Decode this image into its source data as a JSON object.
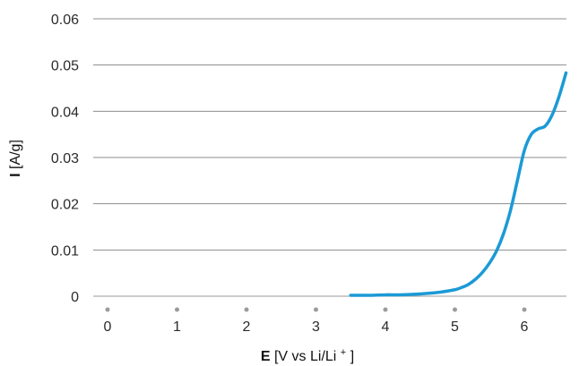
{
  "chart_data": {
    "type": "line",
    "title": "",
    "xlabel": {
      "bold_part": "E",
      "prefix": "[V vs Li/Li",
      "superscript": "+",
      "suffix": "]"
    },
    "ylabel": {
      "bold_part": "I",
      "rest": "[A/g]"
    },
    "xlim": [
      0,
      6.6
    ],
    "ylim": [
      0,
      0.06
    ],
    "x_ticks": [
      "0",
      "1",
      "2",
      "3",
      "4",
      "5",
      "6"
    ],
    "y_ticks": [
      "0",
      "0.01",
      "0.02",
      "0.03",
      "0.04",
      "0.05",
      "0.06"
    ],
    "grid": "horizontal",
    "legend": "none",
    "series": [
      {
        "color": "#1b9ad6",
        "x": [
          3.5,
          3.8,
          4.0,
          4.2,
          4.4,
          4.6,
          4.8,
          5.0,
          5.1,
          5.2,
          5.3,
          5.4,
          5.5,
          5.6,
          5.7,
          5.8,
          5.9,
          6.0,
          6.1,
          6.2,
          6.3,
          6.4,
          6.5,
          6.6
        ],
        "y": [
          0.0002,
          0.0002,
          0.0003,
          0.0003,
          0.0004,
          0.0006,
          0.0009,
          0.0014,
          0.0019,
          0.0026,
          0.0037,
          0.0052,
          0.0072,
          0.0098,
          0.0135,
          0.0185,
          0.025,
          0.0315,
          0.035,
          0.0362,
          0.0368,
          0.0392,
          0.0432,
          0.0483
        ]
      }
    ]
  }
}
